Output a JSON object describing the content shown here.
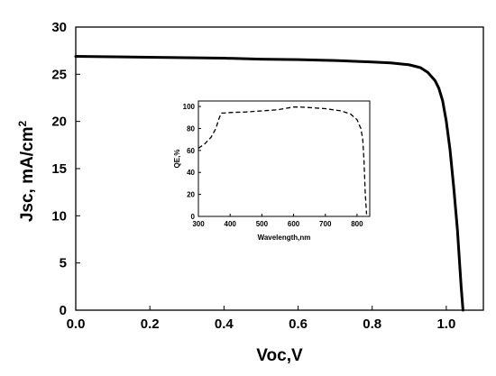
{
  "chart_data": [
    {
      "type": "line",
      "xlabel": "Voc,V",
      "ylabel_main": "Jsc, mA/cm",
      "ylabel_sup": "2",
      "xlim": [
        0.0,
        1.1
      ],
      "ylim": [
        0,
        30
      ],
      "x_ticks": [
        0.0,
        0.2,
        0.4,
        0.6,
        0.8,
        1.0
      ],
      "x_tick_labels": [
        "0.0",
        "0.2",
        "0.4",
        "0.6",
        "0.8",
        "1.0"
      ],
      "y_ticks": [
        0,
        5,
        10,
        15,
        20,
        25,
        30
      ],
      "y_tick_labels": [
        "0",
        "5",
        "10",
        "15",
        "20",
        "25",
        "30"
      ],
      "grid": false,
      "series": [
        {
          "style": "solid",
          "color": "#000000",
          "x": [
            0.0,
            0.1,
            0.2,
            0.3,
            0.4,
            0.5,
            0.6,
            0.7,
            0.8,
            0.85,
            0.9,
            0.93,
            0.95,
            0.97,
            0.98,
            0.99,
            1.0,
            1.01,
            1.02,
            1.03,
            1.035,
            1.04,
            1.045
          ],
          "y": [
            26.9,
            26.85,
            26.8,
            26.75,
            26.7,
            26.6,
            26.55,
            26.45,
            26.3,
            26.2,
            26.0,
            25.7,
            25.2,
            24.3,
            23.5,
            22.2,
            20.0,
            17.0,
            13.0,
            8.5,
            5.5,
            2.5,
            0.0
          ]
        }
      ]
    },
    {
      "type": "line",
      "xlabel": "Wavelength,nm",
      "ylabel": "QE,%",
      "xlim": [
        300,
        840
      ],
      "ylim": [
        0,
        105
      ],
      "x_ticks": [
        300,
        400,
        500,
        600,
        700,
        800
      ],
      "x_tick_labels": [
        "300",
        "400",
        "500",
        "600",
        "700",
        "800"
      ],
      "y_ticks": [
        0,
        20,
        40,
        60,
        80,
        100
      ],
      "y_tick_labels": [
        "0",
        "20",
        "40",
        "60",
        "80",
        "100"
      ],
      "grid": false,
      "series": [
        {
          "style": "dashed",
          "color": "#000000",
          "x": [
            300,
            320,
            340,
            355,
            365,
            372,
            380,
            400,
            450,
            500,
            550,
            580,
            600,
            620,
            650,
            700,
            750,
            780,
            800,
            812,
            818,
            822,
            826,
            830
          ],
          "y": [
            62,
            66,
            72,
            80,
            89,
            94,
            94,
            94.5,
            95,
            96,
            97,
            98.5,
            99.5,
            99.5,
            99,
            98,
            96,
            93,
            88,
            80,
            70,
            50,
            20,
            2
          ]
        }
      ]
    }
  ]
}
